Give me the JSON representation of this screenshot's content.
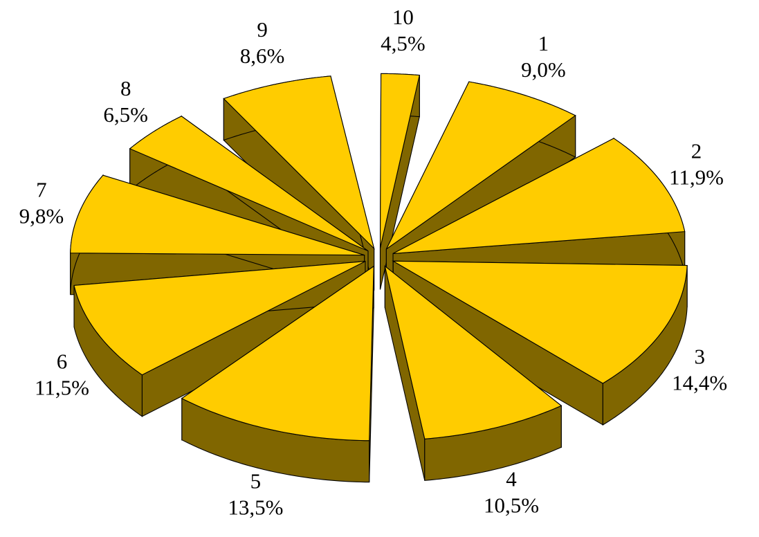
{
  "chart_data": {
    "type": "pie",
    "style": "3d-exploded",
    "categories": [
      "1",
      "2",
      "3",
      "4",
      "5",
      "6",
      "7",
      "8",
      "9",
      "10"
    ],
    "values": [
      9.0,
      11.9,
      14.4,
      10.5,
      13.5,
      11.5,
      9.8,
      6.5,
      8.6,
      4.5
    ],
    "value_labels": [
      "9,0%",
      "11,9%",
      "14,4%",
      "10,5%",
      "13,5%",
      "11,5%",
      "9,8%",
      "6,5%",
      "8,6%",
      "4,5%"
    ],
    "title": "",
    "legend": "none",
    "colors": {
      "top": "#FFCC00",
      "side": "#806600",
      "outline": "#000000"
    }
  }
}
